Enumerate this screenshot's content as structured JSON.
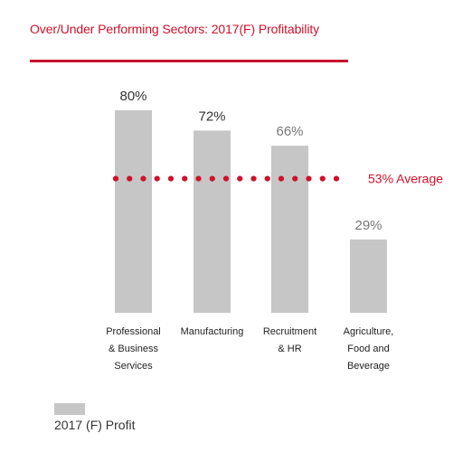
{
  "chart_data": {
    "type": "bar",
    "title": "Over/Under Performing Sectors: 2017(F) Profitability",
    "categories": [
      [
        "Professional",
        "& Business",
        "Services"
      ],
      [
        "Manufacturing"
      ],
      [
        "Recruitment",
        "& HR"
      ],
      [
        "Agriculture,",
        "Food and",
        "Beverage"
      ]
    ],
    "values": [
      80,
      72,
      66,
      29
    ],
    "value_labels": [
      "80%",
      "72%",
      "66%",
      "29%"
    ],
    "ylim": [
      0,
      80
    ],
    "grid": false,
    "reference_line": {
      "value": 53,
      "label": "53% Average",
      "style": "dotted"
    },
    "legend": {
      "position": "bottom-left",
      "entries": [
        "2017 (F) Profit"
      ]
    },
    "colors": {
      "bar": "#c6c6c6",
      "accent": "#d0112b",
      "title_rule": "#c8102e",
      "value_text_strong": "#333333",
      "value_text_muted": "#777777",
      "category_text": "#222222"
    }
  }
}
